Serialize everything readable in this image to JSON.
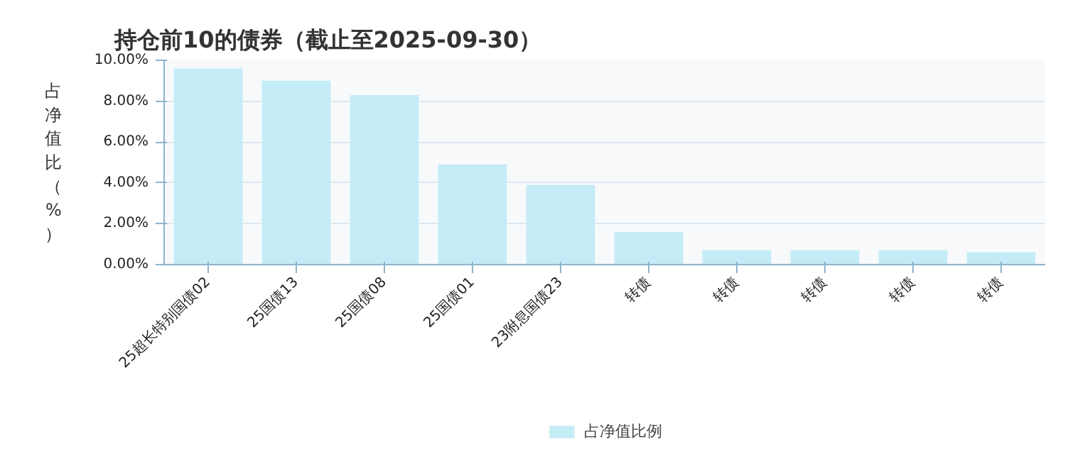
{
  "chart_data": {
    "type": "bar",
    "title": "持仓前10的债券（截止至2025-09-30）",
    "ylabel": "占净值比（%）",
    "categories": [
      "25超长特别国债02",
      "25国债13",
      "25国债08",
      "25国债01",
      "23附息国债23",
      "转债",
      "转债",
      "转债",
      "转债",
      "转债"
    ],
    "series": [
      {
        "name": "占净值比例",
        "color": "#c4ecf7",
        "values": [
          9.6,
          9.0,
          8.3,
          4.9,
          3.9,
          1.6,
          0.7,
          0.7,
          0.7,
          0.6
        ]
      }
    ],
    "ylim": [
      0,
      10
    ],
    "yticks": [
      {
        "value": 0,
        "label": "0.00%"
      },
      {
        "value": 2,
        "label": "2.00%"
      },
      {
        "value": 4,
        "label": "4.00%"
      },
      {
        "value": 6,
        "label": "6.00%"
      },
      {
        "value": 8,
        "label": "8.00%"
      },
      {
        "value": 10,
        "label": "10.00%"
      }
    ],
    "grid": "y",
    "legend": "bottom"
  }
}
